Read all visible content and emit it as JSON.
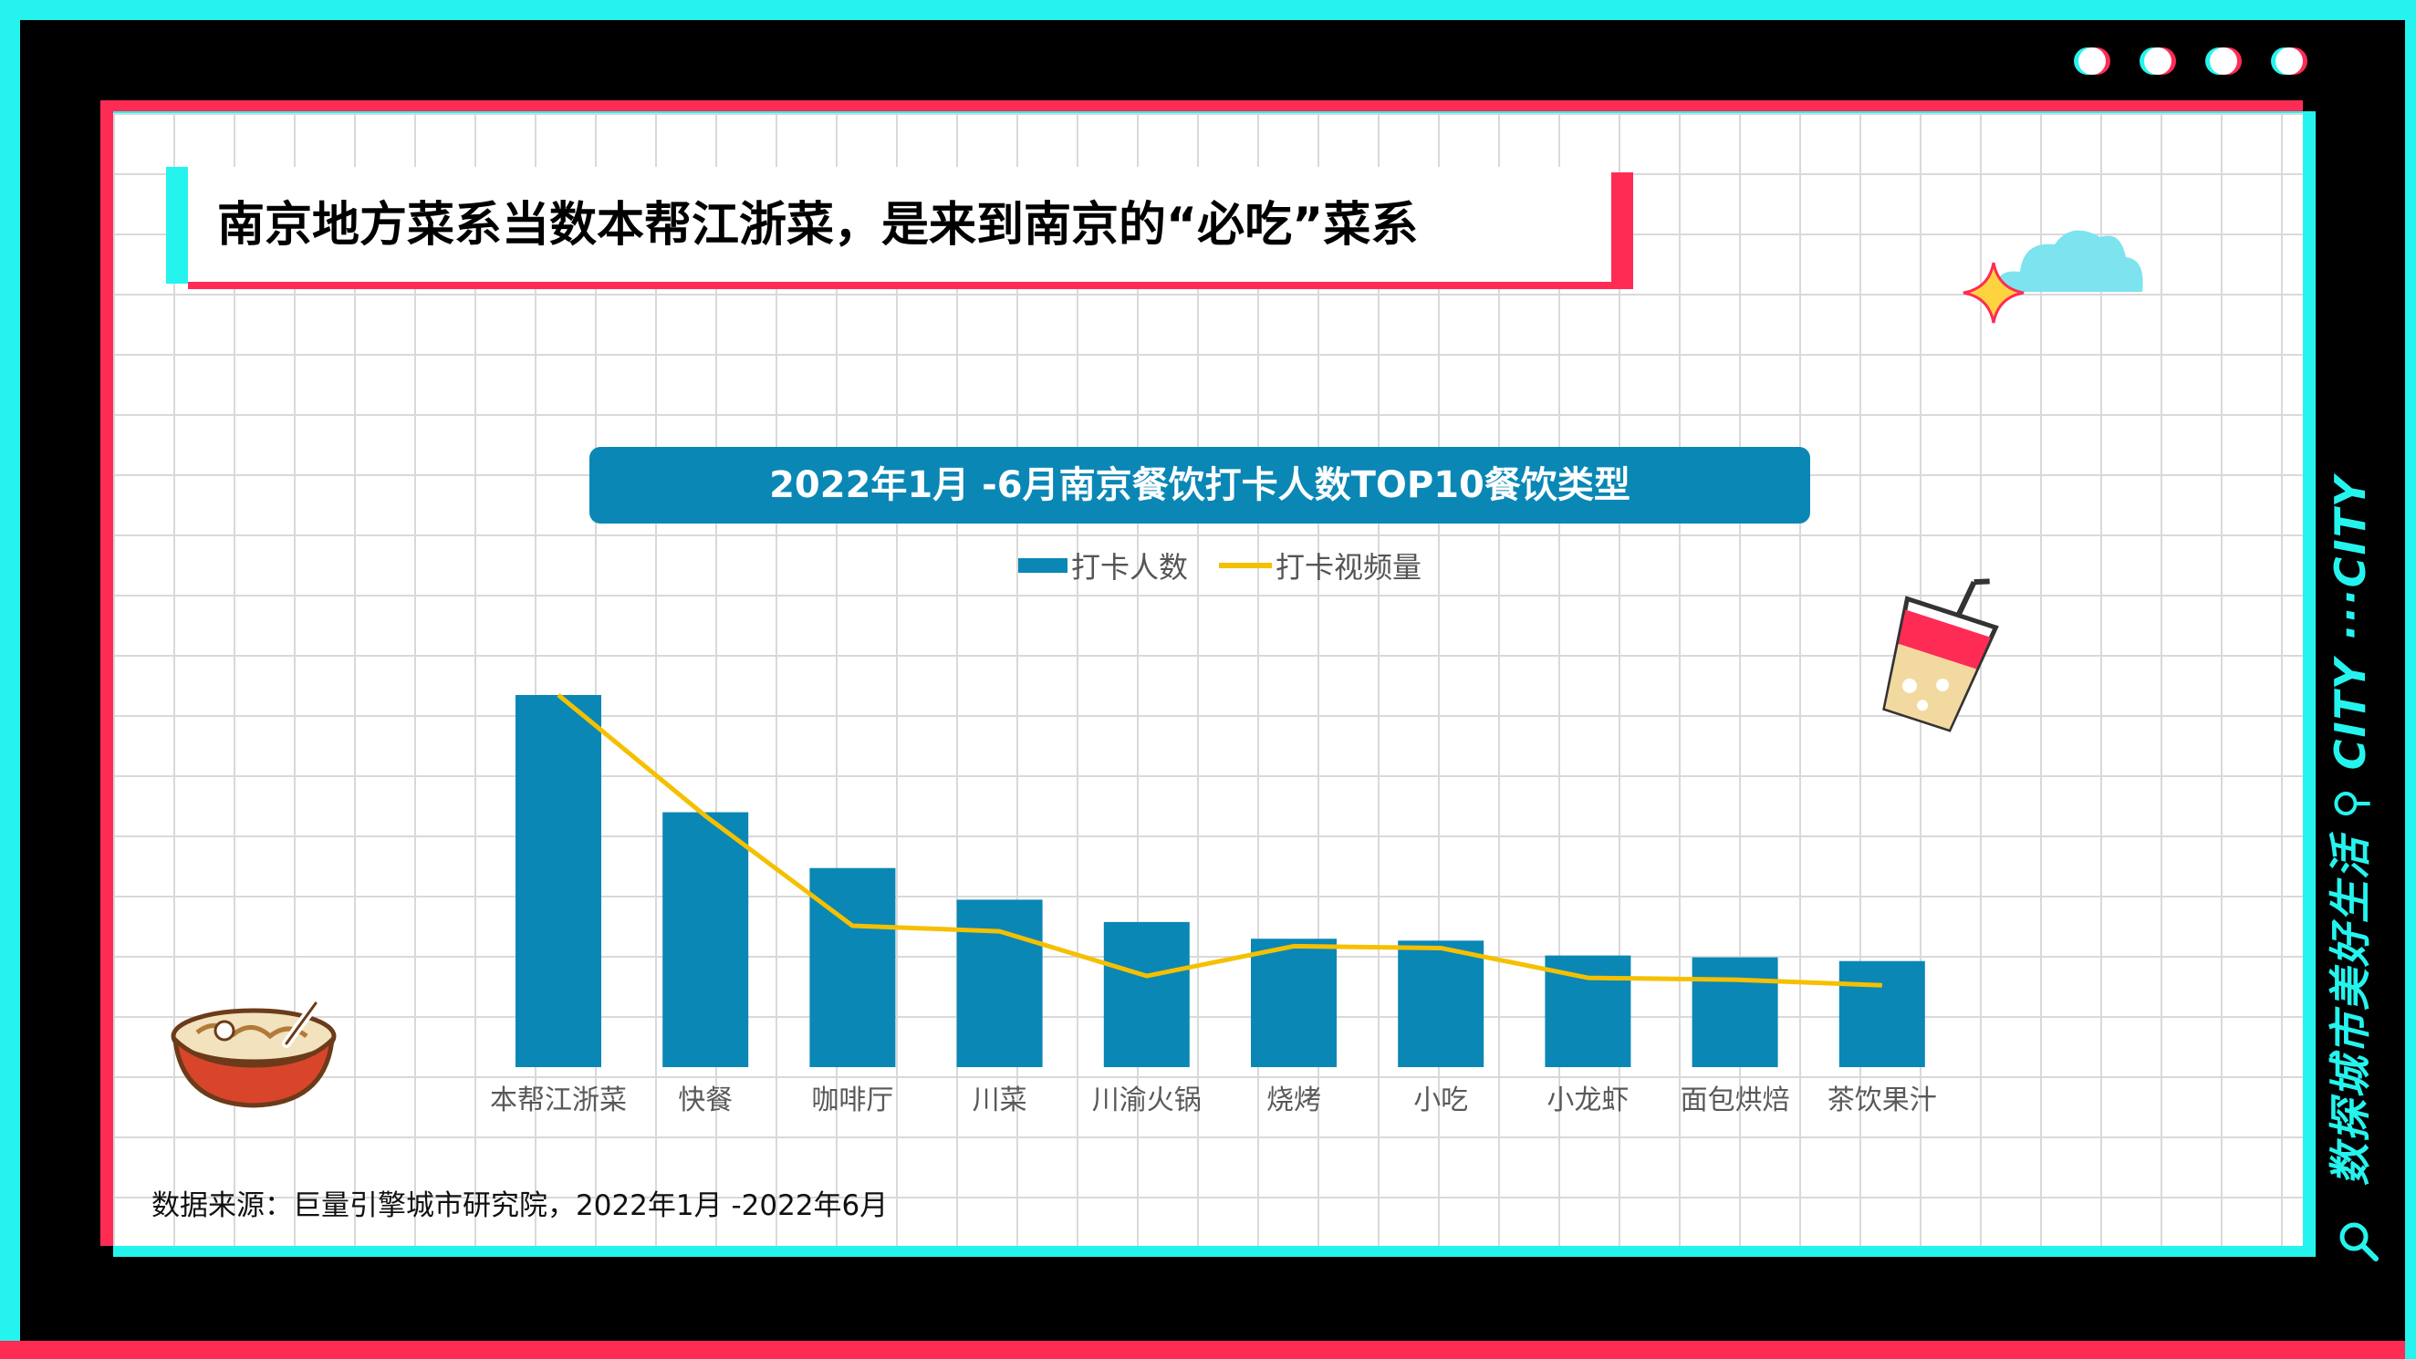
{
  "header": {
    "title": "南京地方菜系当数本帮江浙菜，是来到南京的“必吃”菜系"
  },
  "chart_data": {
    "type": "bar",
    "title": "2022年1月 -6月南京餐饮打卡人数TOP10餐饮类型",
    "categories": [
      "本帮江浙菜",
      "快餐",
      "咖啡厅",
      "川菜",
      "川渝火锅",
      "烧烤",
      "小吃",
      "小龙虾",
      "面包烘焙",
      "茶饮果汁"
    ],
    "series": [
      {
        "name": "打卡人数",
        "type": "bar",
        "color": "#0a87b5",
        "values": [
          100,
          68.5,
          53.5,
          45,
          39,
          34.5,
          34,
          30,
          29.5,
          28.5
        ]
      },
      {
        "name": "打卡视频量",
        "type": "line",
        "color": "#f5c000",
        "values": [
          100,
          67.5,
          38,
          36.5,
          24.5,
          32.5,
          32,
          24,
          23.5,
          22
        ]
      }
    ],
    "ylim": [
      0,
      125
    ],
    "grid": false,
    "legend_position": "top-center",
    "yaxis_visible": false
  },
  "footer": {
    "source": "数据来源：巨量引擎城市研究院，2022年1月 -2022年6月"
  },
  "side_banner": {
    "text": "数探城市美好生活 ⚲ CITY ···CITY"
  },
  "colors": {
    "cyan": "#25f4ee",
    "red": "#fe2c55",
    "black": "#000000",
    "bar_blue": "#0a87b5",
    "line_yellow": "#f5c000"
  },
  "icons": [
    "dot-icon",
    "sparkle-icon",
    "cloud-icon",
    "drink-cup-icon",
    "noodle-bowl-icon",
    "magnifier-icon"
  ]
}
